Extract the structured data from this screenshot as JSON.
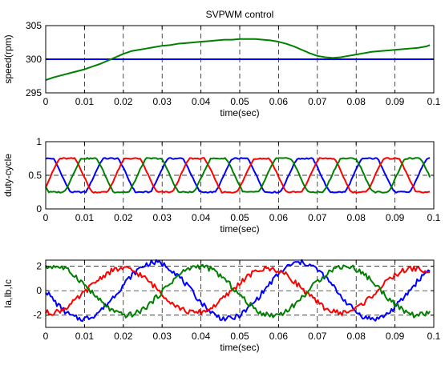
{
  "chart_data": [
    {
      "type": "line",
      "title": "SVPWM control",
      "xlabel": "time(sec)",
      "ylabel": "speed(rpm)",
      "xlim": [
        0,
        0.1
      ],
      "ylim": [
        295,
        305
      ],
      "xticks": [
        0,
        0.01,
        0.02,
        0.03,
        0.04,
        0.05,
        0.06,
        0.07,
        0.08,
        0.09,
        0.1
      ],
      "xtick_labels": [
        "0",
        "0.01",
        "0.02",
        "0.03",
        "0.04",
        "0.05",
        "0.06",
        "0.07",
        "0.08",
        "0.09",
        "0.1"
      ],
      "yticks": [
        295,
        300,
        305
      ],
      "ytick_labels": [
        "295",
        "300",
        "305"
      ],
      "grid": "dashed",
      "series": [
        {
          "color": "#0000ff",
          "points": [
            [
              0,
              300
            ],
            [
              0.1,
              300
            ]
          ]
        },
        {
          "color": "#008000",
          "points": [
            [
              0,
              296.9
            ],
            [
              0.002,
              297.3
            ],
            [
              0.004,
              297.6
            ],
            [
              0.006,
              297.9
            ],
            [
              0.008,
              298.2
            ],
            [
              0.01,
              298.5
            ],
            [
              0.012,
              298.9
            ],
            [
              0.014,
              299.3
            ],
            [
              0.016,
              299.8
            ],
            [
              0.018,
              300.3
            ],
            [
              0.02,
              300.8
            ],
            [
              0.022,
              301.2
            ],
            [
              0.024,
              301.4
            ],
            [
              0.026,
              301.6
            ],
            [
              0.028,
              301.8
            ],
            [
              0.03,
              302.0
            ],
            [
              0.032,
              302.1
            ],
            [
              0.034,
              302.3
            ],
            [
              0.036,
              302.4
            ],
            [
              0.038,
              302.5
            ],
            [
              0.04,
              302.6
            ],
            [
              0.042,
              302.7
            ],
            [
              0.044,
              302.8
            ],
            [
              0.046,
              302.9
            ],
            [
              0.048,
              302.9
            ],
            [
              0.05,
              303.0
            ],
            [
              0.052,
              303.0
            ],
            [
              0.054,
              303.0
            ],
            [
              0.056,
              302.9
            ],
            [
              0.058,
              302.8
            ],
            [
              0.06,
              302.6
            ],
            [
              0.062,
              302.3
            ],
            [
              0.064,
              301.9
            ],
            [
              0.066,
              301.4
            ],
            [
              0.068,
              300.9
            ],
            [
              0.07,
              300.5
            ],
            [
              0.072,
              300.3
            ],
            [
              0.074,
              300.2
            ],
            [
              0.076,
              300.3
            ],
            [
              0.078,
              300.5
            ],
            [
              0.08,
              300.7
            ],
            [
              0.082,
              300.9
            ],
            [
              0.084,
              301.1
            ],
            [
              0.086,
              301.2
            ],
            [
              0.088,
              301.3
            ],
            [
              0.09,
              301.4
            ],
            [
              0.092,
              301.5
            ],
            [
              0.094,
              301.6
            ],
            [
              0.096,
              301.7
            ],
            [
              0.098,
              301.9
            ],
            [
              0.099,
              302.1
            ]
          ]
        }
      ]
    },
    {
      "type": "line",
      "title": "",
      "xlabel": "time(sec)",
      "ylabel": "duty-cycle",
      "xlim": [
        0,
        0.1
      ],
      "ylim": [
        0,
        1
      ],
      "xticks": [
        0,
        0.01,
        0.02,
        0.03,
        0.04,
        0.05,
        0.06,
        0.07,
        0.08,
        0.09,
        0.1
      ],
      "xtick_labels": [
        "0",
        "0.01",
        "0.02",
        "0.03",
        "0.04",
        "0.05",
        "0.06",
        "0.07",
        "0.08",
        "0.09",
        "0.1"
      ],
      "yticks": [
        0,
        0.5,
        1
      ],
      "ytick_labels": [
        "0",
        "0.5",
        "1"
      ],
      "grid": "dashed",
      "series": [
        {
          "color": "#0000ff",
          "phase_deg": 0,
          "offset": 0.5,
          "amplitude": 0.25
        },
        {
          "color": "#ff0000",
          "phase_deg": -120,
          "offset": 0.5,
          "amplitude": 0.25
        },
        {
          "color": "#008000",
          "phase_deg": 120,
          "offset": 0.5,
          "amplitude": 0.25
        }
      ],
      "period_sec": 0.0167,
      "x_end": 0.099
    },
    {
      "type": "line",
      "title": "",
      "xlabel": "time(sec)",
      "ylabel": "Ia,Ib,Ic",
      "xlim": [
        0,
        0.1
      ],
      "ylim": [
        -3,
        2.5
      ],
      "xticks": [
        0,
        0.01,
        0.02,
        0.03,
        0.04,
        0.05,
        0.06,
        0.07,
        0.08,
        0.09,
        0.1
      ],
      "xtick_labels": [
        "0",
        "0.01",
        "0.02",
        "0.03",
        "0.04",
        "0.05",
        "0.06",
        "0.07",
        "0.08",
        "0.09",
        "0.1"
      ],
      "yticks": [
        -2,
        0,
        2
      ],
      "ytick_labels": [
        "-2",
        "0",
        "2"
      ],
      "grid": "dashed",
      "series": [
        {
          "color": "#0000ff",
          "phase_deg": 180,
          "amplitude": 2.3
        },
        {
          "color": "#ff0000",
          "phase_deg": -100,
          "amplitude": 1.8
        },
        {
          "color": "#008000",
          "phase_deg": 70,
          "amplitude": 2.0
        }
      ],
      "period_sec": 0.0375,
      "x_end": 0.099
    }
  ]
}
